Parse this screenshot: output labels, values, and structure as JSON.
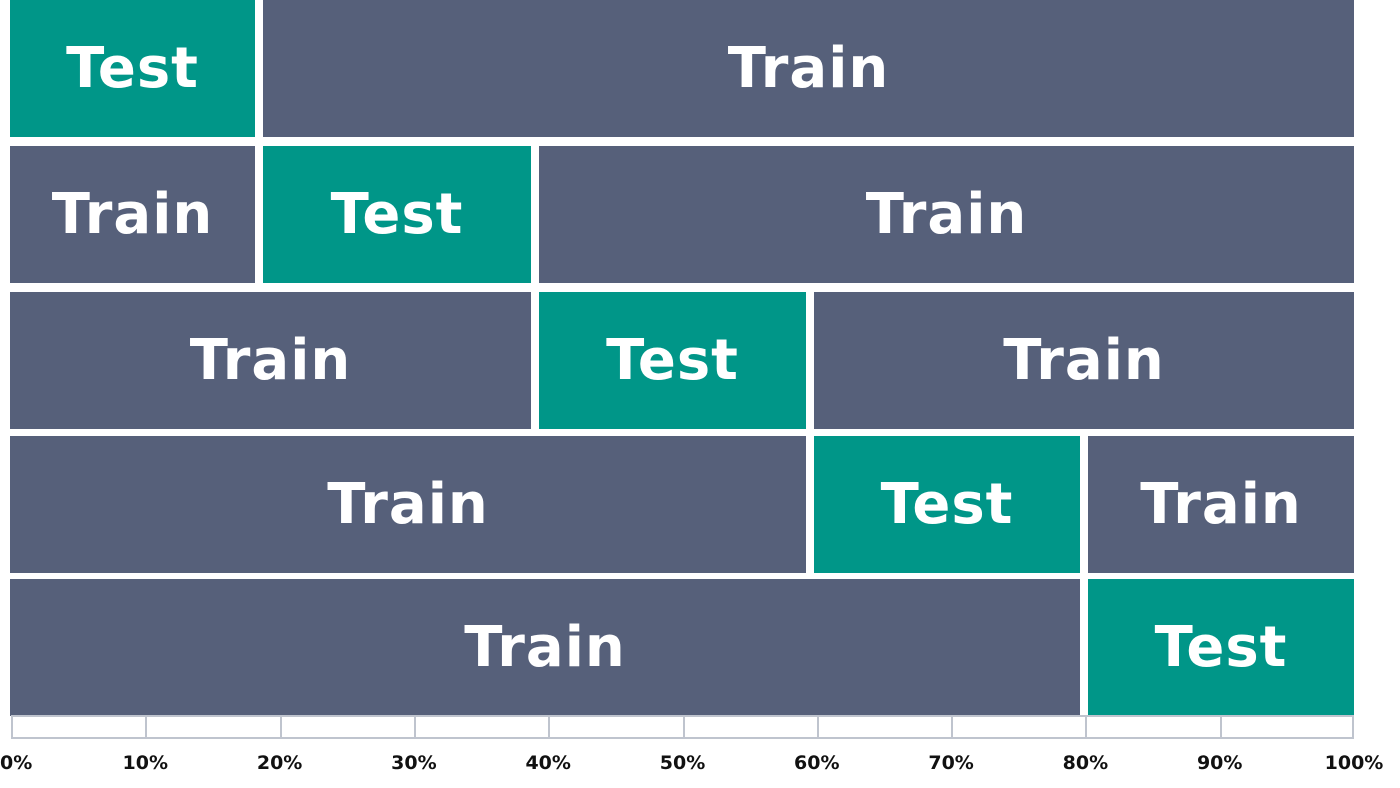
{
  "folds": [
    {
      "segments": [
        {
          "label": "Test",
          "kind": "test",
          "start": 0,
          "end": 20
        },
        {
          "label": "Train",
          "kind": "train",
          "start": 20,
          "end": 100
        }
      ]
    },
    {
      "segments": [
        {
          "label": "Train",
          "kind": "train",
          "start": 0,
          "end": 20
        },
        {
          "label": "Test",
          "kind": "test",
          "start": 20,
          "end": 40
        },
        {
          "label": "Train",
          "kind": "train",
          "start": 40,
          "end": 100
        }
      ]
    },
    {
      "segments": [
        {
          "label": "Train",
          "kind": "train",
          "start": 0,
          "end": 40
        },
        {
          "label": "Test",
          "kind": "test",
          "start": 40,
          "end": 60
        },
        {
          "label": "Train",
          "kind": "train",
          "start": 60,
          "end": 100
        }
      ]
    },
    {
      "segments": [
        {
          "label": "Train",
          "kind": "train",
          "start": 0,
          "end": 60
        },
        {
          "label": "Test",
          "kind": "test",
          "start": 60,
          "end": 80
        },
        {
          "label": "Train",
          "kind": "train",
          "start": 80,
          "end": 100
        }
      ]
    },
    {
      "segments": [
        {
          "label": "Train",
          "kind": "train",
          "start": 0,
          "end": 80
        },
        {
          "label": "Test",
          "kind": "test",
          "start": 80,
          "end": 100
        }
      ]
    }
  ],
  "axis": {
    "ticks": [
      "0%",
      "10%",
      "20%",
      "30%",
      "40%",
      "50%",
      "60%",
      "70%",
      "80%",
      "90%",
      "100%"
    ]
  },
  "colors": {
    "train": "#56607a",
    "test": "#009688",
    "axis_line": "#bfc4ce",
    "tick_text": "#111111"
  }
}
